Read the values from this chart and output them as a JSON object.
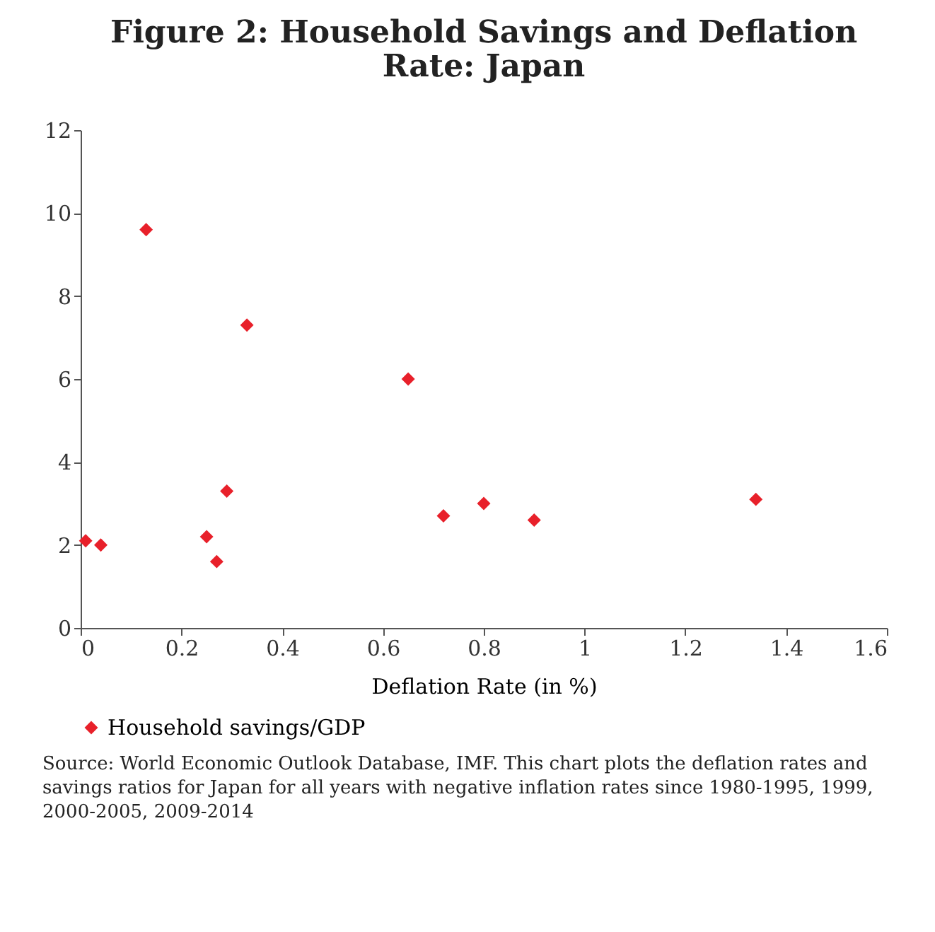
{
  "chart_data": {
    "type": "scatter",
    "title": "Figure 2: Household Savings and Deflation Rate: Japan",
    "xlabel": "Deflation Rate (in %)",
    "series": [
      {
        "name": "Household savings/GDP",
        "color": "#e8202a",
        "x": [
          0.01,
          0.04,
          0.13,
          0.25,
          0.27,
          0.29,
          0.33,
          0.65,
          0.72,
          0.8,
          0.9,
          1.34
        ],
        "values": [
          2.1,
          2.0,
          9.6,
          2.2,
          1.6,
          3.3,
          7.3,
          6.0,
          2.7,
          3.0,
          2.6,
          3.1
        ]
      }
    ],
    "xlim": [
      0,
      1.6
    ],
    "xticks": [
      0,
      0.2,
      0.4,
      0.6,
      0.8,
      1,
      1.2,
      1.4,
      1.6
    ],
    "ylim": [
      0,
      12
    ],
    "yticks": [
      0,
      2,
      4,
      6,
      8,
      10,
      12
    ],
    "grid": false,
    "legend": "bottom",
    "marker": "diamond",
    "annotations": [
      "Source: World Economic Outlook Database, IMF. This chart plots the deflation rates and savings ratios for Japan for all years with negative inflation rates since 1980-1995, 1999, 2000-2005, 2009-2014"
    ]
  }
}
